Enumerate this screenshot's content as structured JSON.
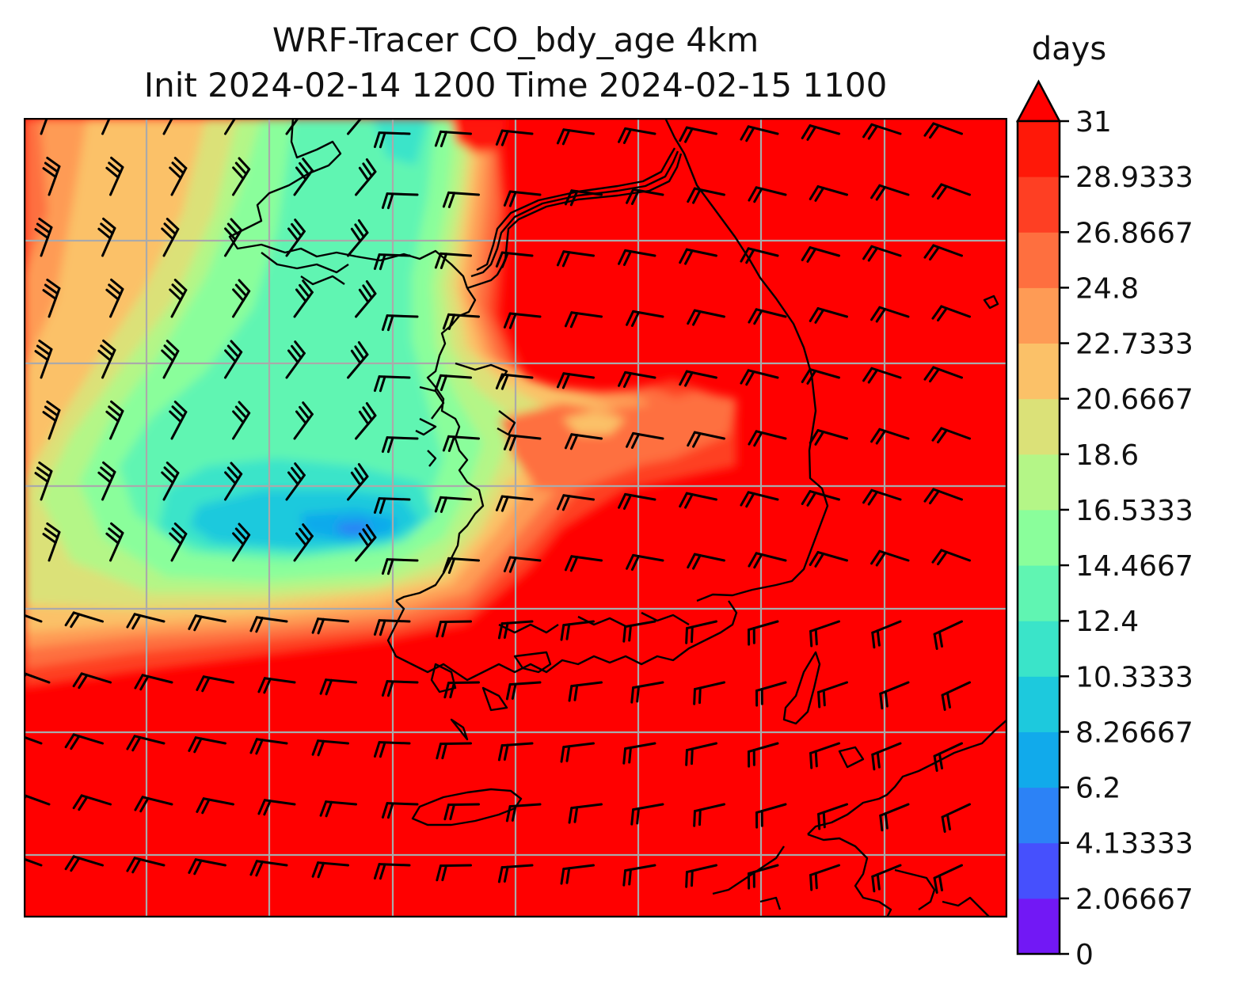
{
  "title": {
    "line1": "WRF-Tracer CO_bdy_age 4km",
    "line2": "Init 2024-02-14 1200 Time 2024-02-15 1100"
  },
  "colorbar": {
    "unit": "days",
    "min": 0,
    "max": 31,
    "extend": "max",
    "tick_labels": [
      "0",
      "2.06667",
      "4.13333",
      "6.2",
      "8.26667",
      "10.3333",
      "12.4",
      "14.4667",
      "16.5333",
      "18.6",
      "20.6667",
      "22.7333",
      "24.8",
      "26.8667",
      "28.9333",
      "31"
    ],
    "colors": [
      "#7218f5",
      "#4650fd",
      "#2c82f6",
      "#11aaeb",
      "#1dc9dd",
      "#3ae4c9",
      "#60f5b2",
      "#8afe9b",
      "#b4f687",
      "#dbe178",
      "#fbc168",
      "#fe9b55",
      "#fe6f3f",
      "#fe3f23",
      "#ff1808"
    ],
    "extend_color": "#ff0000"
  },
  "map": {
    "background_color": "#ff0000",
    "gridline_color": "#aaaaaa",
    "coastline_color": "#000000",
    "barb_color": "#000000"
  }
}
